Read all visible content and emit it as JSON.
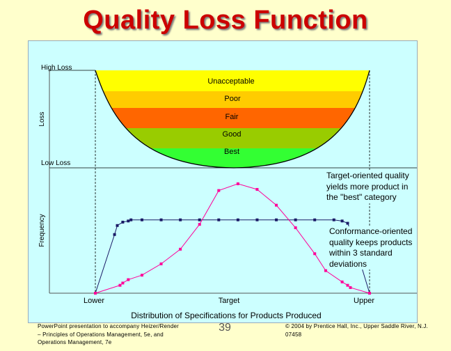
{
  "title": "Quality Loss Function",
  "loss_axis": {
    "ylabel": "Loss",
    "high_label": "High Loss",
    "low_label": "Low Loss",
    "bands": [
      {
        "label": "Unacceptable",
        "color": "#ffff00"
      },
      {
        "label": "Poor",
        "color": "#ffcc00"
      },
      {
        "label": "Fair",
        "color": "#ff6600"
      },
      {
        "label": "Good",
        "color": "#99cc00"
      },
      {
        "label": "Best",
        "color": "#33ff33"
      }
    ]
  },
  "frequency_axis": {
    "ylabel": "Frequency",
    "x_ticks": [
      "Lower",
      "Target",
      "Upper"
    ],
    "xlabel": "Distribution of Specifications for Products Produced"
  },
  "chart_data": {
    "type": "line",
    "series": [
      {
        "marker_color": "#1a1a66",
        "x": [
          0,
          0.07,
          0.08,
          0.1,
          0.12,
          0.13,
          0.17,
          0.24,
          0.31,
          0.38,
          0.45,
          0.52,
          0.59,
          0.66,
          0.73,
          0.8,
          0.87,
          0.9,
          0.92,
          0.93,
          1.0
        ],
        "y": [
          0,
          0.52,
          0.6,
          0.63,
          0.64,
          0.65,
          0.65,
          0.65,
          0.65,
          0.65,
          0.65,
          0.65,
          0.65,
          0.65,
          0.65,
          0.65,
          0.65,
          0.64,
          0.62,
          0.56,
          0
        ]
      },
      {
        "marker_color": "#ff0099",
        "x": [
          0,
          0.09,
          0.1,
          0.12,
          0.17,
          0.24,
          0.31,
          0.38,
          0.45,
          0.52,
          0.59,
          0.66,
          0.73,
          0.8,
          0.84,
          0.9,
          0.92,
          0.93,
          1.0
        ],
        "y": [
          0,
          0.07,
          0.09,
          0.12,
          0.16,
          0.26,
          0.39,
          0.61,
          0.91,
          0.97,
          0.92,
          0.78,
          0.58,
          0.35,
          0.2,
          0.1,
          0.07,
          0.05,
          0
        ]
      }
    ]
  },
  "callouts": {
    "target": "Target-oriented quality yields more product in the \"best\" category",
    "conformance": "Conformance-oriented quality keeps products within 3 standard deviations"
  },
  "footer": {
    "left": "PowerPoint presentation to accompany Heizer/Render – Principles of Operations Management, 5e, and Operations Management, 7e",
    "page": "39",
    "right": "© 2004 by Prentice Hall, Inc., Upper Saddle River, N.J. 07458"
  }
}
